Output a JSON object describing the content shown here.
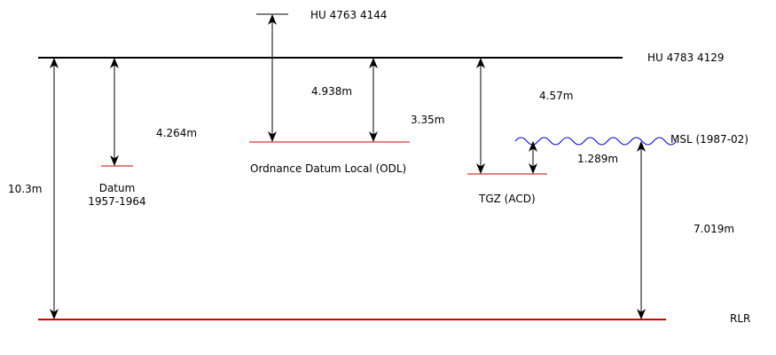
{
  "colors": {
    "line": "#000000",
    "datum": "#d00000",
    "sea": "#0000cc"
  },
  "levels": {
    "hu_4763": "HU 4763 4144",
    "hu_4783": "HU 4783 4129",
    "odl": "Ordnance Datum Local (ODL)",
    "datum_1957_line1": "Datum",
    "datum_1957_line2": "1957-1964",
    "tgz": "TGZ (ACD)",
    "msl": "MSL (1987-02)",
    "rlr": "RLR"
  },
  "measurements": {
    "m_10_3": "10.3m",
    "m_4_264": "4.264m",
    "m_4_938": "4.938m",
    "m_3_35": "3.35m",
    "m_4_57": "4.57m",
    "m_1_289": "1.289m",
    "m_7_019": "7.019m"
  }
}
